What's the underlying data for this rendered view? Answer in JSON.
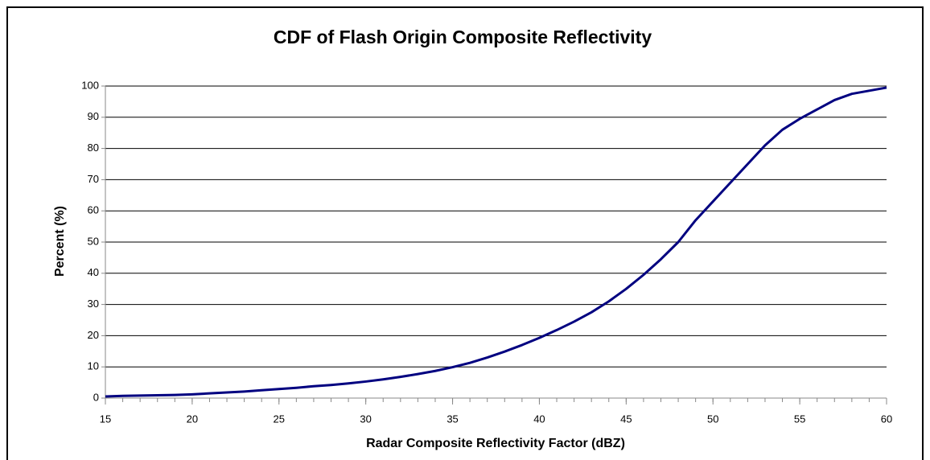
{
  "chart_data": {
    "type": "line",
    "title": "CDF of Flash Origin Composite Reflectivity",
    "xlabel": "Radar Composite Reflectivity Factor (dBZ)",
    "ylabel": "Percent (%)",
    "x": [
      15,
      16,
      17,
      18,
      19,
      20,
      21,
      22,
      23,
      24,
      25,
      26,
      27,
      28,
      29,
      30,
      31,
      32,
      33,
      34,
      35,
      36,
      37,
      38,
      39,
      40,
      41,
      42,
      43,
      44,
      45,
      46,
      47,
      48,
      49,
      50,
      51,
      52,
      53,
      54,
      55,
      56,
      57,
      58,
      59,
      60
    ],
    "series": [
      {
        "name": "CDF",
        "color": "#000080",
        "values": [
          0.5,
          0.7,
          0.8,
          0.9,
          1.0,
          1.2,
          1.5,
          1.8,
          2.1,
          2.5,
          2.9,
          3.3,
          3.8,
          4.2,
          4.7,
          5.3,
          6.0,
          6.8,
          7.7,
          8.7,
          9.9,
          11.3,
          13.0,
          14.9,
          17.0,
          19.3,
          21.8,
          24.5,
          27.5,
          31.0,
          35.0,
          39.5,
          44.5,
          50.0,
          57.0,
          63.0,
          69.0,
          75.0,
          81.0,
          86.0,
          89.5,
          92.5,
          95.5,
          97.5,
          98.5,
          99.5
        ]
      }
    ],
    "xlim": [
      15,
      60
    ],
    "xticks": [
      15,
      20,
      25,
      30,
      35,
      40,
      45,
      50,
      55,
      60
    ],
    "ylim": [
      0,
      100
    ],
    "yticks": [
      0,
      10,
      20,
      30,
      40,
      50,
      60,
      70,
      80,
      90,
      100
    ],
    "grid": true
  }
}
